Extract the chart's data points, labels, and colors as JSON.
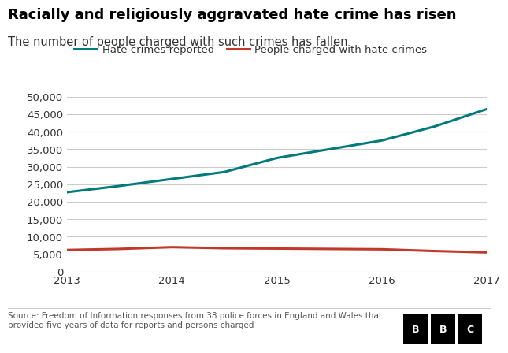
{
  "title": "Racially and religiously aggravated hate crime has risen",
  "subtitle": "The number of people charged with such crimes has fallen",
  "years": [
    2013,
    2013.5,
    2014,
    2014.5,
    2015,
    2015.5,
    2016,
    2016.5,
    2017
  ],
  "hate_crimes": [
    22700,
    24500,
    26500,
    28500,
    32500,
    35000,
    37500,
    41500,
    46500
  ],
  "charged": [
    6200,
    6500,
    7000,
    6700,
    6600,
    6500,
    6400,
    5900,
    5500
  ],
  "hate_color": "#007A7A",
  "charged_color": "#C0392B",
  "ylim": [
    0,
    50000
  ],
  "yticks": [
    0,
    5000,
    10000,
    15000,
    20000,
    25000,
    30000,
    35000,
    40000,
    45000,
    50000
  ],
  "xticks": [
    2013,
    2014,
    2015,
    2016,
    2017
  ],
  "legend_hate": "Hate crimes reported",
  "legend_charged": "People charged with hate crimes",
  "source_text": "Source: Freedom of Information responses from 38 police forces in England and Wales that\nprovided five years of data for reports and persons charged",
  "bg_color": "#FFFFFF",
  "grid_color": "#CCCCCC",
  "title_fontsize": 13,
  "subtitle_fontsize": 10.5,
  "legend_fontsize": 9.5,
  "tick_fontsize": 9.5,
  "source_fontsize": 7.5,
  "line_width": 2.2
}
